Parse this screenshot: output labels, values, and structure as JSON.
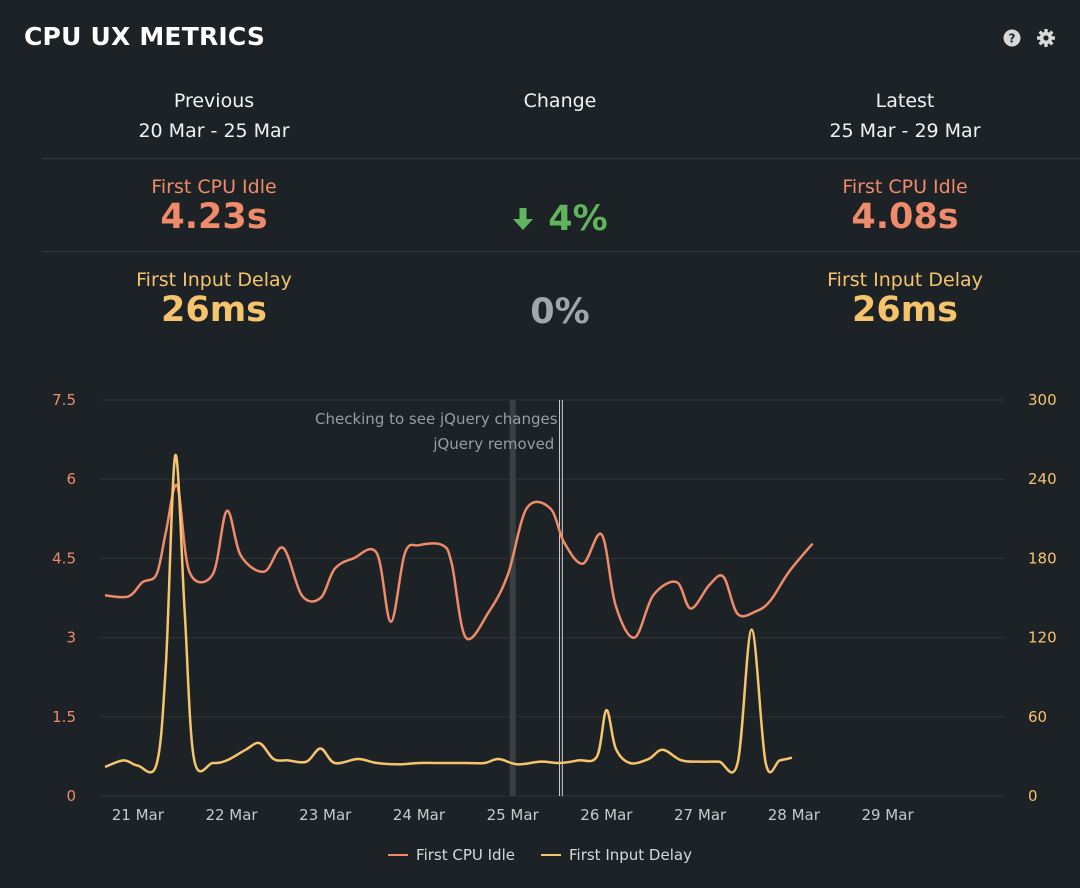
{
  "header": {
    "title": "CPU UX METRICS",
    "help_icon": "question-circle-icon",
    "settings_icon": "gear-icon"
  },
  "periods": {
    "previous": {
      "label": "Previous",
      "range": "20 Mar - 25 Mar"
    },
    "change": {
      "label": "Change"
    },
    "latest": {
      "label": "Latest",
      "range": "25 Mar - 29 Mar"
    }
  },
  "metrics": {
    "first_cpu_idle": {
      "name": "First CPU Idle",
      "previous": "4.23s",
      "latest": "4.08s",
      "change": "4%",
      "change_direction_icon": "arrow-down-icon",
      "color": "#ef8b6a"
    },
    "first_input_delay": {
      "name": "First Input Delay",
      "previous": "26ms",
      "latest": "26ms",
      "change": "0%",
      "color": "#f6c46c"
    }
  },
  "colors": {
    "background": "#1c2225",
    "improvement": "#5fb45c",
    "neutral": "#a3a6a8",
    "grid": "#2e3538"
  },
  "chart_data": {
    "type": "line",
    "x_ticks": [
      "21 Mar",
      "22 Mar",
      "23 Mar",
      "24 Mar",
      "25 Mar",
      "26 Mar",
      "27 Mar",
      "28 Mar",
      "29 Mar"
    ],
    "x_range": [
      "20.65 Mar",
      "30.2 Mar"
    ],
    "y_left": {
      "ticks": [
        "0",
        "1.5",
        "3",
        "4.5",
        "6",
        "7.5"
      ],
      "min": 0,
      "max": 7.5
    },
    "y_right": {
      "ticks": [
        "0",
        "60",
        "120",
        "180",
        "240",
        "300"
      ],
      "min": 0,
      "max": 300
    },
    "annotations": [
      {
        "x": 25.0,
        "label": "",
        "style": "band"
      },
      {
        "x": 25.5,
        "label": "Checking to see jQuery changes"
      },
      {
        "x": 25.53,
        "label": "jQuery removed"
      }
    ],
    "series": [
      {
        "name": "First CPU Idle",
        "axis": "left",
        "color": "#ef8b6a",
        "points": [
          [
            20.65,
            3.8
          ],
          [
            20.9,
            3.78
          ],
          [
            21.05,
            4.05
          ],
          [
            21.2,
            4.2
          ],
          [
            21.3,
            5.0
          ],
          [
            21.42,
            5.88
          ],
          [
            21.55,
            4.25
          ],
          [
            21.8,
            4.2
          ],
          [
            21.95,
            5.4
          ],
          [
            22.1,
            4.55
          ],
          [
            22.35,
            4.25
          ],
          [
            22.55,
            4.7
          ],
          [
            22.75,
            3.8
          ],
          [
            22.95,
            3.75
          ],
          [
            23.1,
            4.3
          ],
          [
            23.3,
            4.5
          ],
          [
            23.55,
            4.6
          ],
          [
            23.7,
            3.3
          ],
          [
            23.85,
            4.6
          ],
          [
            24.0,
            4.75
          ],
          [
            24.25,
            4.75
          ],
          [
            24.35,
            4.4
          ],
          [
            24.5,
            3.0
          ],
          [
            24.75,
            3.5
          ],
          [
            24.95,
            4.2
          ],
          [
            25.15,
            5.45
          ],
          [
            25.4,
            5.45
          ],
          [
            25.55,
            4.8
          ],
          [
            25.75,
            4.4
          ],
          [
            25.95,
            4.95
          ],
          [
            26.1,
            3.6
          ],
          [
            26.3,
            3.0
          ],
          [
            26.5,
            3.8
          ],
          [
            26.75,
            4.05
          ],
          [
            26.9,
            3.55
          ],
          [
            27.1,
            4.0
          ],
          [
            27.25,
            4.15
          ],
          [
            27.4,
            3.45
          ],
          [
            27.6,
            3.5
          ],
          [
            27.75,
            3.7
          ],
          [
            27.95,
            4.25
          ],
          [
            28.2,
            4.78
          ]
        ]
      },
      {
        "name": "First Input Delay",
        "axis": "right",
        "color": "#f6c46c",
        "points": [
          [
            20.65,
            22
          ],
          [
            20.85,
            27
          ],
          [
            21.0,
            23
          ],
          [
            21.2,
            24
          ],
          [
            21.3,
            100
          ],
          [
            21.4,
            258
          ],
          [
            21.5,
            140
          ],
          [
            21.6,
            28
          ],
          [
            21.8,
            25
          ],
          [
            21.95,
            27
          ],
          [
            22.15,
            35
          ],
          [
            22.3,
            40
          ],
          [
            22.45,
            28
          ],
          [
            22.6,
            27
          ],
          [
            22.8,
            26
          ],
          [
            22.95,
            36
          ],
          [
            23.1,
            25
          ],
          [
            23.35,
            28
          ],
          [
            23.55,
            25
          ],
          [
            23.8,
            24
          ],
          [
            24.0,
            25
          ],
          [
            24.25,
            25
          ],
          [
            24.5,
            25
          ],
          [
            24.7,
            25
          ],
          [
            24.85,
            28
          ],
          [
            25.05,
            24
          ],
          [
            25.3,
            26
          ],
          [
            25.5,
            25
          ],
          [
            25.7,
            27
          ],
          [
            25.9,
            30
          ],
          [
            26.0,
            65
          ],
          [
            26.1,
            36
          ],
          [
            26.25,
            25
          ],
          [
            26.45,
            28
          ],
          [
            26.6,
            35
          ],
          [
            26.8,
            27
          ],
          [
            27.0,
            26
          ],
          [
            27.2,
            26
          ],
          [
            27.4,
            25
          ],
          [
            27.55,
            126
          ],
          [
            27.7,
            25
          ],
          [
            27.85,
            27
          ],
          [
            27.98,
            29
          ]
        ]
      }
    ],
    "legend": {
      "position": "bottom-center",
      "items": [
        "First CPU Idle",
        "First Input Delay"
      ]
    },
    "grid": true
  }
}
